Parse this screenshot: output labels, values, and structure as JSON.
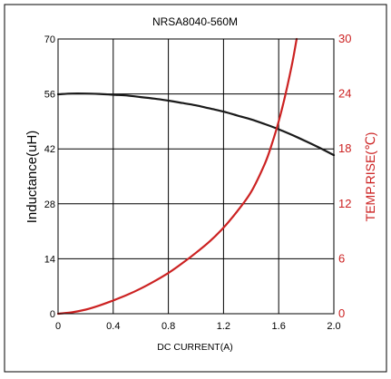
{
  "chart_data": {
    "type": "line",
    "title": "NRSA8040-560M",
    "xlabel": "DC CURRENT(A)",
    "ylabel": "Inductance(uH)",
    "y2label": "TEMP.RISE(℃)",
    "xlim": [
      0,
      2.0
    ],
    "ylim": [
      0,
      70
    ],
    "y2lim": [
      0,
      30
    ],
    "x_ticks": [
      "0",
      "0.4",
      "0.8",
      "1.2",
      "1.6",
      "2.0"
    ],
    "y_ticks": [
      "0",
      "14",
      "28",
      "42",
      "56",
      "70"
    ],
    "y2_ticks": [
      "0",
      "6",
      "12",
      "18",
      "24",
      "30"
    ],
    "grid": true,
    "colors": {
      "inductance": "#1a1a1a",
      "temp_rise": "#cc2222",
      "right_axis": "#cc2222",
      "frame": "#000000"
    },
    "series": [
      {
        "axis": "left",
        "color": "#1a1a1a",
        "x": [
          0,
          0.1,
          0.2,
          0.3,
          0.4,
          0.5,
          0.6,
          0.7,
          0.8,
          0.9,
          1.0,
          1.1,
          1.2,
          1.3,
          1.4,
          1.5,
          1.6,
          1.7,
          1.8,
          1.9,
          2.0
        ],
        "values": [
          55.9,
          56.1,
          56.1,
          56.0,
          55.8,
          55.6,
          55.2,
          54.8,
          54.3,
          53.7,
          53.1,
          52.3,
          51.5,
          50.5,
          49.5,
          48.3,
          47.0,
          45.5,
          43.9,
          42.2,
          40.4
        ]
      },
      {
        "axis": "right",
        "color": "#cc2222",
        "x": [
          0,
          0.1,
          0.2,
          0.3,
          0.4,
          0.5,
          0.6,
          0.7,
          0.8,
          0.9,
          1.0,
          1.1,
          1.2,
          1.3,
          1.4,
          1.5,
          1.55,
          1.6,
          1.65,
          1.7,
          1.73
        ],
        "values": [
          0,
          0.15,
          0.45,
          0.9,
          1.45,
          2.05,
          2.75,
          3.55,
          4.45,
          5.5,
          6.65,
          7.9,
          9.4,
          11.2,
          13.3,
          16.4,
          18.5,
          21.0,
          24.0,
          27.5,
          30.0
        ]
      }
    ]
  }
}
